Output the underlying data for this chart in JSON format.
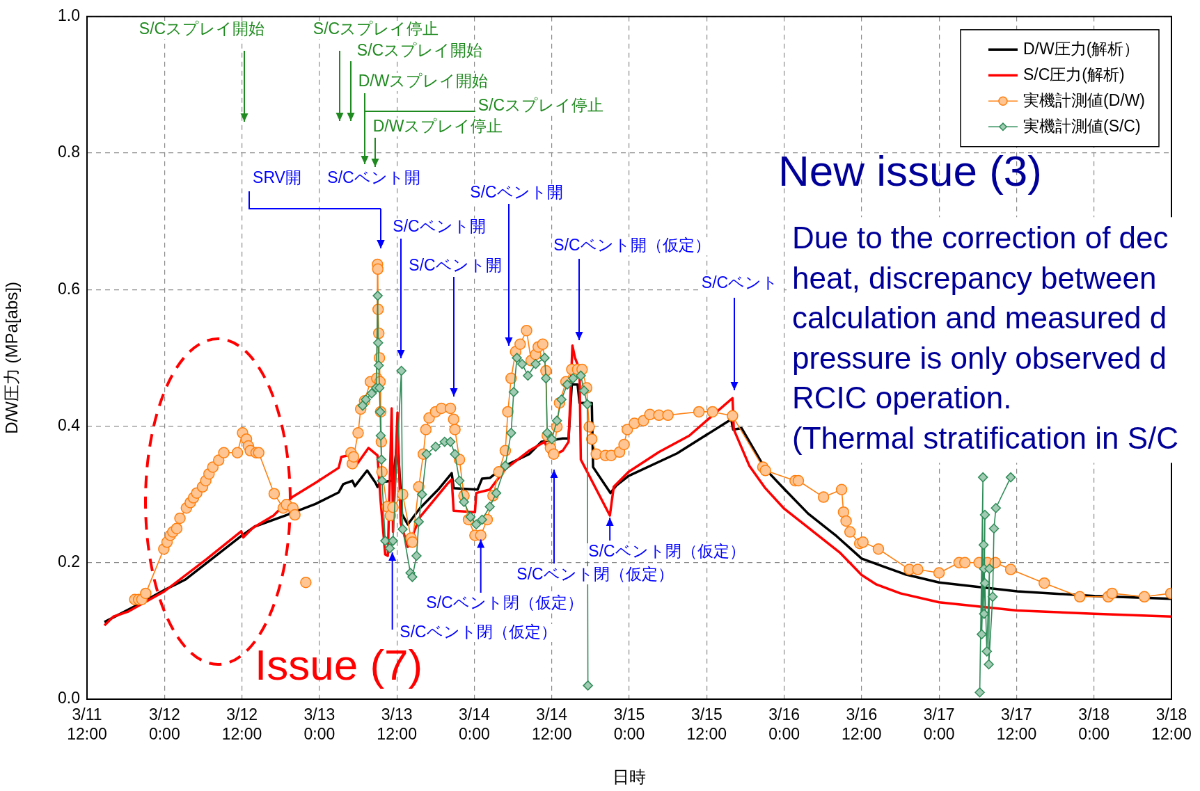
{
  "chart_data": {
    "type": "line",
    "xlabel": "日時",
    "ylabel": "D/W圧力 (MPa[abs])",
    "xlim": [
      "--03-11T12:00",
      "--03-18T12:00"
    ],
    "xticks": [
      {
        "value": "--03-11T12:00",
        "label": "3/11\n12:00"
      },
      {
        "value": "--03-12T00:00",
        "label": "3/12\n0:00"
      },
      {
        "value": "--03-12T12:00",
        "label": "3/12\n12:00"
      },
      {
        "value": "--03-13T00:00",
        "label": "3/13\n0:00"
      },
      {
        "value": "--03-13T12:00",
        "label": "3/13\n12:00"
      },
      {
        "value": "--03-14T00:00",
        "label": "3/14\n0:00"
      },
      {
        "value": "--03-14T12:00",
        "label": "3/14\n12:00"
      },
      {
        "value": "--03-15T00:00",
        "label": "3/15\n0:00"
      },
      {
        "value": "--03-15T12:00",
        "label": "3/15\n12:00"
      },
      {
        "value": "--03-16T00:00",
        "label": "3/16\n0:00"
      },
      {
        "value": "--03-16T12:00",
        "label": "3/16\n12:00"
      },
      {
        "value": "--03-17T00:00",
        "label": "3/17\n0:00"
      },
      {
        "value": "--03-17T12:00",
        "label": "3/17\n12:00"
      },
      {
        "value": "--03-18T00:00",
        "label": "3/18\n0:00"
      },
      {
        "value": "--03-18T12:00",
        "label": "3/18\n12:00"
      }
    ],
    "ylim": [
      0,
      1
    ],
    "yticks": [
      {
        "value": 0,
        "label": "0.0"
      },
      0.2,
      0.4,
      0.6,
      0.8,
      {
        "value": 1,
        "label": "1.0"
      }
    ],
    "grid": true,
    "legend": "top right",
    "series": [
      {
        "name": "D/W圧力(解析）",
        "color": "#000000",
        "marker": "none",
        "x": [
          "--03-11T14:42",
          "--03-11T19:48",
          "--03-12T00:00",
          "--03-12T03:12",
          "--03-12T11:54",
          "--03-12T14:00",
          "--03-12T18:42",
          "--03-12T23:24",
          "--03-13T03:00",
          "--03-13T03:42",
          "--03-13T05:06",
          "--03-13T05:30",
          "--03-13T07:24",
          "--03-13T08:42",
          "--03-13T09:00",
          "--03-13T09:30",
          "--03-13T11:24",
          "--03-13T12:06",
          "--03-13T12:48",
          "--03-13T13:42",
          "--03-13T15:36",
          "--03-13T18:24",
          "--03-13T20:30",
          "--03-13T20:48",
          "--03-14T00:30",
          "--03-14T01:12",
          "--03-14T02:24",
          "--03-14T04:48",
          "--03-14T08:30",
          "--03-14T10:24",
          "--03-14T13:42",
          "--03-14T14:36",
          "--03-14T15:06",
          "--03-14T16:00",
          "--03-14T16:18",
          "--03-14T18:12",
          "--03-14T18:24",
          "--03-14T21:06",
          "--03-14T22:00",
          "--03-14T23:54",
          "--03-15T07:24",
          "--03-15T15:48",
          "--03-15T16:06",
          "--03-15T17:24",
          "--03-15T21:06",
          "--03-16T00:00",
          "--03-16T03:42",
          "--03-16T08:06",
          "--03-16T12:00",
          "--03-16T18:42",
          "--03-17T00:00",
          "--03-17T12:06",
          "--03-18T00:06",
          "--03-18T12:00"
        ],
        "values": [
          0.113,
          0.138,
          0.16,
          0.175,
          0.239,
          0.253,
          0.269,
          0.286,
          0.303,
          0.315,
          0.32,
          0.312,
          0.335,
          0.317,
          0.311,
          0.318,
          0.32,
          0.38,
          0.271,
          0.256,
          0.28,
          0.307,
          0.331,
          0.309,
          0.307,
          0.323,
          0.324,
          0.342,
          0.359,
          0.377,
          0.382,
          0.382,
          0.461,
          0.461,
          0.434,
          0.434,
          0.34,
          0.302,
          0.313,
          0.327,
          0.36,
          0.41,
          0.395,
          0.397,
          0.337,
          0.308,
          0.272,
          0.239,
          0.206,
          0.183,
          0.171,
          0.158,
          0.151,
          0.147
        ]
      },
      {
        "name": "S/C圧力(解析)",
        "color": "#ff0000",
        "marker": "none",
        "x": [
          "--03-11T14:42",
          "--03-11T16:06",
          "--03-11T18:18",
          "--03-12T00:00",
          "--03-12T06:30",
          "--03-12T11:54",
          "--03-12T12:12",
          "--03-12T13:42",
          "--03-12T16:54",
          "--03-12T19:48",
          "--03-12T23:24",
          "--03-13T03:00",
          "--03-13T03:24",
          "--03-13T04:24",
          "--03-13T05:48",
          "--03-13T07:36",
          "--03-13T09:00",
          "--03-13T09:30",
          "--03-13T10:12",
          "--03-13T10:36",
          "--03-13T11:12",
          "--03-13T11:24",
          "--03-13T12:06",
          "--03-13T12:36",
          "--03-13T13:42",
          "--03-13T15:36",
          "--03-13T19:48",
          "--03-13T20:30",
          "--03-13T20:48",
          "--03-14T00:06",
          "--03-14T00:18",
          "--03-14T02:24",
          "--03-14T04:48",
          "--03-14T08:30",
          "--03-14T10:54",
          "--03-14T11:48",
          "--03-14T13:42",
          "--03-14T14:36",
          "--03-14T15:12",
          "--03-14T15:36",
          "--03-14T16:18",
          "--03-14T16:30",
          "--03-14T21:00",
          "--03-14T21:36",
          "--03-14T23:54",
          "--03-15T04:36",
          "--03-15T09:18",
          "--03-15T16:00",
          "--03-15T16:12",
          "--03-15T18:36",
          "--03-15T21:00",
          "--03-16T00:00",
          "--03-16T03:54",
          "--03-16T08:36",
          "--03-16T12:00",
          "--03-16T14:18",
          "--03-16T18:00",
          "--03-17T00:00",
          "--03-17T12:00",
          "--03-18T00:00",
          "--03-18T12:00"
        ],
        "values": [
          0.108,
          0.121,
          0.128,
          0.158,
          0.205,
          0.246,
          0.237,
          0.251,
          0.269,
          0.296,
          0.317,
          0.339,
          0.355,
          0.357,
          0.344,
          0.368,
          0.357,
          0.289,
          0.212,
          0.21,
          0.426,
          0.245,
          0.42,
          0.258,
          0.223,
          0.267,
          0.315,
          0.322,
          0.276,
          0.274,
          0.302,
          0.307,
          0.337,
          0.364,
          0.377,
          0.355,
          0.364,
          0.377,
          0.518,
          0.5,
          0.483,
          0.351,
          0.269,
          0.311,
          0.333,
          0.362,
          0.386,
          0.441,
          0.395,
          0.342,
          0.31,
          0.279,
          0.25,
          0.215,
          0.182,
          0.168,
          0.155,
          0.142,
          0.13,
          0.125,
          0.121
        ]
      },
      {
        "name": "実機計測値(D/W)",
        "color": "#ff7f0e",
        "marker": "circle",
        "x": [
          "--03-11T19:24",
          "--03-11T20:00",
          "--03-11T20:30",
          "--03-11T21:06",
          "--03-11T23:54",
          "--03-12T00:24",
          "--03-12T00:54",
          "--03-12T01:18",
          "--03-12T01:54",
          "--03-12T02:24",
          "--03-12T03:24",
          "--03-12T04:00",
          "--03-12T04:30",
          "--03-12T05:00",
          "--03-12T05:54",
          "--03-12T06:24",
          "--03-12T06:54",
          "--03-12T07:30",
          "--03-12T08:24",
          "--03-12T09:12",
          "--03-12T11:18",
          "--03-12T12:06",
          "--03-12T12:42",
          "--03-12T13:00",
          "--03-12T13:18",
          "--03-12T14:12",
          "--03-12T14:36",
          "--03-12T17:00",
          "--03-12T18:24",
          "--03-12T18:54",
          "--03-12T19:54",
          "--03-12T20:12",
          "--03-12T21:00",
          "--03-12T21:54",
          "--03-12T23:00",
          "--03-13T04:54",
          "--03-13T05:06",
          "--03-13T05:18",
          "--03-13T06:00",
          "--03-13T06:24",
          "--03-13T07:00",
          "--03-13T07:54",
          "--03-13T08:54",
          "--03-13T09:00",
          "--03-13T09:03",
          "--03-13T09:06",
          "--03-13T09:12",
          "--03-13T09:18",
          "--03-13T09:24",
          "--03-13T09:30",
          "--03-13T09:36",
          "--03-13T09:42",
          "--03-13T10:30",
          "--03-13T11:00",
          "--03-13T11:24",
          "--03-13T12:54",
          "--03-13T14:12",
          "--03-13T14:24",
          "--03-13T15:24",
          "--03-13T16:06",
          "--03-13T16:30",
          "--03-13T17:00",
          "--03-13T18:00",
          "--03-13T18:54",
          "--03-13T20:18",
          "--03-13T20:48",
          "--03-13T21:00",
          "--03-13T21:42",
          "--03-13T22:24",
          "--03-13T23:06",
          "--03-14T00:06",
          "--03-14T01:00",
          "--03-14T02:00",
          "--03-14T02:54",
          "--03-14T03:48",
          "--03-14T04:48",
          "--03-14T05:12",
          "--03-14T05:42",
          "--03-14T06:24",
          "--03-14T07:06",
          "--03-14T08:06",
          "--03-14T08:48",
          "--03-14T09:30",
          "--03-14T09:54",
          "--03-14T10:36",
          "--03-14T11:06",
          "--03-14T11:18",
          "--03-14T11:48",
          "--03-14T12:18",
          "--03-14T12:48",
          "--03-14T13:12",
          "--03-14T14:12",
          "--03-14T15:06",
          "--03-14T16:00",
          "--03-14T16:42",
          "--03-14T17:24",
          "--03-14T17:48",
          "--03-14T18:12",
          "--03-14T18:54",
          "--03-14T20:18",
          "--03-14T21:12",
          "--03-14T22:30",
          "--03-14T23:12",
          "--03-14T23:42",
          "--03-15T00:48",
          "--03-15T02:12",
          "--03-15T03:12",
          "--03-15T04:36",
          "--03-15T06:00",
          "--03-15T10:48",
          "--03-15T12:54",
          "--03-15T16:00",
          "--03-15T20:42",
          "--03-15T21:06",
          "--03-16T01:42",
          "--03-16T02:12",
          "--03-16T06:06",
          "--03-16T08:54",
          "--03-16T09:12",
          "--03-16T09:36",
          "--03-16T10:12",
          "--03-16T11:42",
          "--03-16T12:12",
          "--03-16T14:36",
          "--03-16T19:24",
          "--03-16T20:42",
          "--03-17T00:00",
          "--03-17T03:06",
          "--03-17T04:00",
          "--03-17T06:12",
          "--03-17T07:30",
          "--03-17T08:42",
          "--03-17T11:06",
          "--03-17T16:18",
          "--03-17T21:48",
          "--03-18T02:12",
          "--03-18T02:48",
          "--03-18T07:48",
          "--03-18T11:54"
        ],
        "values": [
          0.146,
          0.146,
          0.146,
          0.155,
          0.22,
          0.23,
          0.24,
          0.245,
          0.25,
          0.265,
          0.28,
          0.288,
          0.295,
          0.302,
          0.311,
          0.32,
          0.33,
          0.34,
          0.35,
          0.361,
          0.361,
          0.39,
          0.381,
          0.371,
          0.364,
          0.361,
          0.361,
          0.301,
          0.28,
          0.285,
          0.28,
          0.27,
          null,
          0.171,
          null,
          0.361,
          0.345,
          0.355,
          0.39,
          0.425,
          0.437,
          0.465,
          0.47,
          0.637,
          0.63,
          0.571,
          0.536,
          0.5,
          0.465,
          0.421,
          0.377,
          0.333,
          0.282,
          0.269,
          0.281,
          0.3,
          0.236,
          0.23,
          0.311,
          0.359,
          0.395,
          0.412,
          0.421,
          0.426,
          0.426,
          0.41,
          0.395,
          0.351,
          0.298,
          0.263,
          0.24,
          0.24,
          0.263,
          0.298,
          0.333,
          0.364,
          0.421,
          0.47,
          0.509,
          0.52,
          0.54,
          0.496,
          0.505,
          0.516,
          0.52,
          0.481,
          0.386,
          0.368,
          0.359,
          0.399,
          0.434,
          0.465,
          0.483,
          0.483,
          0.483,
          0.456,
          0.399,
          0.381,
          0.359,
          0.357,
          0.357,
          0.362,
          0.373,
          0.395,
          0.404,
          0.408,
          0.417,
          0.416,
          0.416,
          0.421,
          0.421,
          0.415,
          0.34,
          0.335,
          0.32,
          0.32,
          0.296,
          0.307,
          0.274,
          0.261,
          0.245,
          0.228,
          0.23,
          0.22,
          0.19,
          0.19,
          0.185,
          0.2,
          0.2,
          0.2,
          0.2,
          0.2,
          0.19,
          0.17,
          0.15,
          0.15,
          0.155,
          0.15,
          0.155
        ]
      },
      {
        "name": "実機計測値(S/C)",
        "color": "#2e8b57",
        "marker": "diamond",
        "x": [
          "--03-13T06:42",
          "--03-13T07:12",
          "--03-13T08:06",
          "--03-13T08:48",
          "--03-13T09:02",
          "--03-13T09:06",
          "--03-13T09:12",
          "--03-13T09:18",
          "--03-13T09:24",
          "--03-13T09:30",
          "--03-13T09:36",
          "--03-13T09:42",
          "--03-13T10:12",
          "--03-13T10:54",
          "--03-13T11:24",
          "--03-13T12:42",
          "--03-13T12:54",
          "--03-13T14:06",
          "--03-13T14:24",
          "--03-13T15:03",
          "--03-13T15:24",
          "--03-13T15:54",
          "--03-13T16:36",
          "--03-13T18:00",
          "--03-13T19:24",
          "--03-13T20:18",
          "--03-13T21:00",
          "--03-13T21:42",
          "--03-13T22:24",
          "--03-13T23:24",
          "--03-14T00:18",
          "--03-14T01:12",
          "--03-14T02:24",
          "--03-14T03:24",
          "--03-14T04:48",
          "--03-14T05:42",
          "--03-14T06:06",
          "--03-14T06:36",
          "--03-14T07:24",
          "--03-14T08:18",
          "--03-14T09:30",
          "--03-14T10:54",
          "--03-14T11:06",
          "--03-14T11:18",
          "--03-14T12:00",
          "--03-14T12:48",
          "--03-14T13:30",
          "--03-14T14:24",
          "--03-14T15:18",
          "--03-14T16:30",
          "--03-14T17:00",
          "--03-14T17:30",
          "--03-14T17:36",
          "--03-16T00:00",
          "--03-17T06:18",
          "--03-17T06:48",
          "--03-17T06:36",
          "--03-17T07:06",
          "--03-17T06:58",
          "--03-17T06:54",
          "--03-17T06:58",
          "--03-17T07:06",
          "--03-17T07:24",
          "--03-17T07:48",
          "--03-17T07:42",
          "--03-17T08:18",
          "--03-17T08:30",
          "--03-17T08:48",
          "--03-17T11:06"
        ],
        "values": [
          0.43,
          0.439,
          0.448,
          0.456,
          0.591,
          0.522,
          0.489,
          0.456,
          0.421,
          0.386,
          0.351,
          0.32,
          0.232,
          0.221,
          0.232,
          0.481,
          0.249,
          0.185,
          0.179,
          0.21,
          0.26,
          0.3,
          0.359,
          0.37,
          0.377,
          0.377,
          0.359,
          0.32,
          0.289,
          0.267,
          0.256,
          0.263,
          0.282,
          0.302,
          0.342,
          0.39,
          0.45,
          0.5,
          0.491,
          0.474,
          0.491,
          0.5,
          0.47,
          0.39,
          0.381,
          0.408,
          0.439,
          0.461,
          0.47,
          0.474,
          0.452,
          0.432,
          0.02,
          null,
          0.01,
          0.325,
          0.095,
          0.27,
          0.125,
          0.226,
          0.191,
          0.17,
          0.07,
          0.191,
          0.051,
          0.15,
          0.25,
          0.28,
          0.325
        ]
      }
    ],
    "annotations": [
      "S/Cスプレイ開始",
      "S/Cスプレイ停止",
      "S/Cスプレイ開始",
      "D/Wスプレイ開始",
      "S/Cスプレイ停止",
      "D/Wスプレイ停止",
      "SRV開",
      "S/Cベント開",
      "S/Cベント開",
      "S/Cベント開",
      "S/Cベント開",
      "S/Cベント開（仮定）",
      "S/Cベント",
      {
        "text": "S/Cベント閉（仮定）",
        "x": "--03-13T11:18",
        "y": 0.215
      },
      {
        "text": "S/Cベント閉（仮定）",
        "x": "--03-14T01:00",
        "y": 0.234
      },
      "S/Cベント閉（仮定）",
      {
        "text": "S/Cベント閉（仮定）",
        "x": "--03-14T21:00",
        "y": 0.266
      },
      "Issue (7)",
      "New issue (3)",
      "Due to the correction of dec\nheat, discrepancy between\ncalculation and measured d\npressure is only observed d\nRCIC operation.\n(Thermal stratification in S/C"
    ]
  }
}
